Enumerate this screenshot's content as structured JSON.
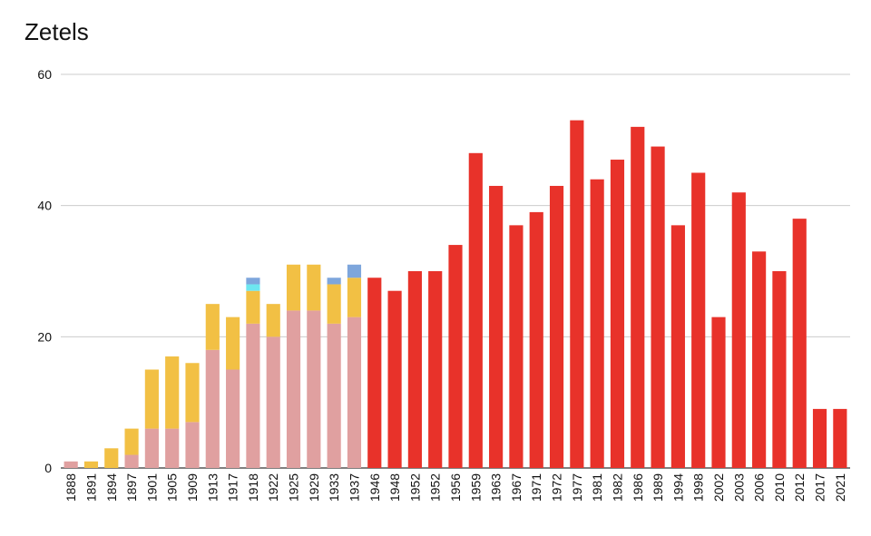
{
  "chart_data": {
    "type": "bar",
    "stacked": true,
    "title": "Zetels",
    "xlabel": "",
    "ylabel": "",
    "ylim": [
      0,
      60
    ],
    "yticks": [
      0,
      20,
      40,
      60
    ],
    "grid": true,
    "legend": "none",
    "categories": [
      "1888",
      "1891",
      "1894",
      "1897",
      "1901",
      "1905",
      "1909",
      "1913",
      "1917",
      "1918",
      "1922",
      "1925",
      "1929",
      "1933",
      "1937",
      "1946",
      "1948",
      "1952",
      "1952",
      "1956",
      "1959",
      "1963",
      "1967",
      "1971",
      "1972",
      "1977",
      "1981",
      "1982",
      "1986",
      "1989",
      "1994",
      "1998",
      "2002",
      "2003",
      "2006",
      "2010",
      "2012",
      "2017",
      "2021"
    ],
    "series": [
      {
        "name": "series-pink",
        "color": "#e0a0a0",
        "values": [
          1,
          0,
          0,
          2,
          6,
          6,
          7,
          18,
          15,
          22,
          20,
          24,
          24,
          22,
          23,
          0,
          0,
          0,
          0,
          0,
          0,
          0,
          0,
          0,
          0,
          0,
          0,
          0,
          0,
          0,
          0,
          0,
          0,
          0,
          0,
          0,
          0,
          0,
          0
        ]
      },
      {
        "name": "series-yellow",
        "color": "#f2c044",
        "values": [
          0,
          1,
          3,
          4,
          9,
          11,
          9,
          7,
          8,
          5,
          5,
          7,
          7,
          6,
          6,
          0,
          0,
          0,
          0,
          0,
          0,
          0,
          0,
          0,
          0,
          0,
          0,
          0,
          0,
          0,
          0,
          0,
          0,
          0,
          0,
          0,
          0,
          0,
          0
        ]
      },
      {
        "name": "series-cyan",
        "color": "#6de6f0",
        "values": [
          0,
          0,
          0,
          0,
          0,
          0,
          0,
          0,
          0,
          1,
          0,
          0,
          0,
          0,
          0,
          0,
          0,
          0,
          0,
          0,
          0,
          0,
          0,
          0,
          0,
          0,
          0,
          0,
          0,
          0,
          0,
          0,
          0,
          0,
          0,
          0,
          0,
          0,
          0
        ]
      },
      {
        "name": "series-blue",
        "color": "#7ea6dc",
        "values": [
          0,
          0,
          0,
          0,
          0,
          0,
          0,
          0,
          0,
          1,
          0,
          0,
          0,
          1,
          2,
          0,
          0,
          0,
          0,
          0,
          0,
          0,
          0,
          0,
          0,
          0,
          0,
          0,
          0,
          0,
          0,
          0,
          0,
          0,
          0,
          0,
          0,
          0,
          0
        ]
      },
      {
        "name": "series-red",
        "color": "#e8322a",
        "values": [
          0,
          0,
          0,
          0,
          0,
          0,
          0,
          0,
          0,
          0,
          0,
          0,
          0,
          0,
          0,
          29,
          27,
          30,
          30,
          34,
          48,
          43,
          37,
          39,
          43,
          53,
          44,
          47,
          52,
          49,
          37,
          45,
          23,
          42,
          33,
          30,
          38,
          9,
          9
        ]
      }
    ]
  }
}
